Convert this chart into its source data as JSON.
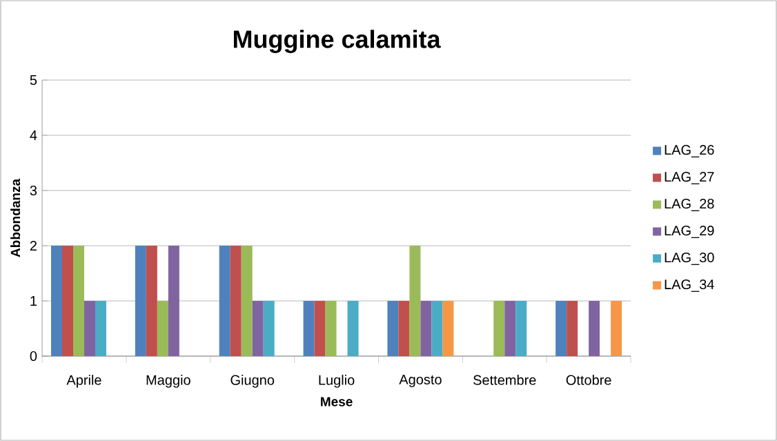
{
  "chart_data": {
    "type": "bar",
    "title": "Muggine calamita",
    "xlabel": "Mese",
    "ylabel": "Abbondanza",
    "categories": [
      "Aprile",
      "Maggio",
      "Giugno",
      "Luglio",
      "Agosto",
      "Settembre",
      "Ottobre"
    ],
    "series": [
      {
        "name": "LAG_26",
        "color": "#4f81bd",
        "values": [
          2,
          2,
          2,
          1,
          1,
          0,
          1
        ]
      },
      {
        "name": "LAG_27",
        "color": "#c0504d",
        "values": [
          2,
          2,
          2,
          1,
          1,
          0,
          1
        ]
      },
      {
        "name": "LAG_28",
        "color": "#9bbb59",
        "values": [
          2,
          1,
          2,
          1,
          2,
          1,
          0
        ]
      },
      {
        "name": "LAG_29",
        "color": "#8064a2",
        "values": [
          1,
          2,
          1,
          0,
          1,
          1,
          1
        ]
      },
      {
        "name": "LAG_30",
        "color": "#4bacc6",
        "values": [
          1,
          0,
          1,
          1,
          1,
          1,
          0
        ]
      },
      {
        "name": "LAG_34",
        "color": "#f79646",
        "values": [
          0,
          0,
          0,
          0,
          1,
          0,
          1
        ]
      }
    ],
    "ylim": [
      0,
      5
    ],
    "yticks": [
      0,
      1,
      2,
      3,
      4,
      5
    ],
    "grid": "y",
    "legend": "right"
  }
}
